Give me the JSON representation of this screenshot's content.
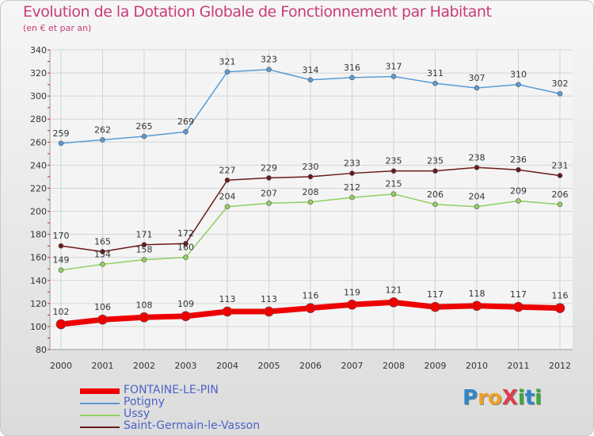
{
  "header": {
    "title": "Evolution de la Dotation Globale de Fonctionnement par Habitant",
    "subtitle": "(en € et par an)"
  },
  "logo": {
    "text": "ProXiti",
    "letters": [
      {
        "ch": "P",
        "color": "#2e86c8"
      },
      {
        "ch": "r",
        "color": "#f0a020"
      },
      {
        "ch": "o",
        "color": "#f0a020"
      },
      {
        "ch": "X",
        "color": "#e03c50"
      },
      {
        "ch": "i",
        "color": "#3ca83c"
      },
      {
        "ch": "t",
        "color": "#2e86c8"
      },
      {
        "ch": "i",
        "color": "#3ca83c"
      }
    ]
  },
  "chart_data": {
    "type": "line",
    "title": "Evolution de la Dotation Globale de Fonctionnement par Habitant",
    "subtitle": "(en € et par an)",
    "xlabel": "",
    "ylabel": "",
    "x": [
      "2000",
      "2001",
      "2002",
      "2003",
      "2004",
      "2005",
      "2006",
      "2007",
      "2008",
      "2009",
      "2010",
      "2011",
      "2012"
    ],
    "ylim": [
      80,
      340
    ],
    "yticks": [
      80,
      100,
      120,
      140,
      160,
      180,
      200,
      220,
      240,
      260,
      280,
      300,
      320,
      340
    ],
    "grid": true,
    "legend_position": "bottom-left",
    "series": [
      {
        "name": "Potigny",
        "color": "#5a9bd5",
        "values": [
          259,
          262,
          265,
          269,
          321,
          323,
          314,
          316,
          317,
          311,
          307,
          310,
          302
        ]
      },
      {
        "name": "Saint-Germain-le-Vasson",
        "color": "#6b1a1a",
        "values": [
          170,
          165,
          171,
          172,
          227,
          229,
          230,
          233,
          235,
          235,
          238,
          236,
          231
        ]
      },
      {
        "name": "Ussy",
        "color": "#90d060",
        "values": [
          149,
          154,
          158,
          160,
          204,
          207,
          208,
          212,
          215,
          206,
          204,
          209,
          206
        ]
      },
      {
        "name": "FONTAINE-LE-PIN",
        "color": "#ee0000",
        "values": [
          102,
          106,
          108,
          109,
          113,
          113,
          116,
          119,
          121,
          117,
          118,
          117,
          116
        ]
      }
    ],
    "legend": [
      "FONTAINE-LE-PIN",
      "Potigny",
      "Ussy",
      "Saint-Germain-le-Vasson"
    ]
  }
}
